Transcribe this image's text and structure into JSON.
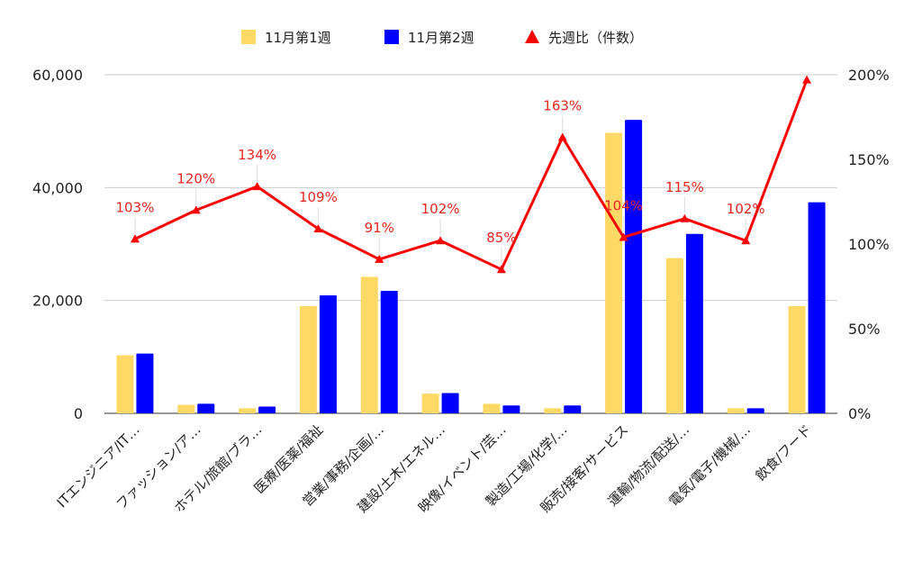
{
  "chart_data": {
    "type": "bar",
    "categories": [
      "ITエンジニア/IT…",
      "ファッション/ア…",
      "ホテル/旅館/ブラ…",
      "医療/医薬/福祉",
      "営業/事務/企画/…",
      "建設/土木/エネル…",
      "映像/イベント/芸…",
      "製造/工場/化学/…",
      "販売/接客/サービス",
      "運輸/物流/配送/…",
      "電気/電子/機械/…",
      "飲食/フード"
    ],
    "series": [
      {
        "name": "11月第1週",
        "type": "bar",
        "axis": "left",
        "color": "#FFD966",
        "values": [
          10300,
          1500,
          900,
          19000,
          24200,
          3500,
          1700,
          900,
          49700,
          27500,
          900,
          19000
        ]
      },
      {
        "name": "11月第2週",
        "type": "bar",
        "axis": "left",
        "color": "#0000FF",
        "values": [
          10600,
          1700,
          1200,
          20900,
          21700,
          3600,
          1400,
          1400,
          52000,
          31800,
          900,
          37400
        ]
      },
      {
        "name": "先週比（件数）",
        "type": "line",
        "axis": "right",
        "color": "#FF0000",
        "values": [
          103,
          120,
          134,
          109,
          91,
          102,
          85,
          163,
          104,
          115,
          102,
          197
        ],
        "labels": [
          "103%",
          "120%",
          "134%",
          "109%",
          "91%",
          "102%",
          "85%",
          "163%",
          "104%",
          "115%",
          "102%",
          ""
        ]
      }
    ],
    "y_left": {
      "min": 0,
      "max": 60000,
      "ticks": [
        "0",
        "20,000",
        "40,000",
        "60,000"
      ],
      "tick_values": [
        0,
        20000,
        40000,
        60000
      ]
    },
    "y_right": {
      "min": 0,
      "max": 200,
      "ticks": [
        "0%",
        "50%",
        "100%",
        "150%",
        "200%"
      ],
      "tick_values": [
        0,
        50,
        100,
        150,
        200
      ]
    },
    "grid": true,
    "legend_position": "top"
  }
}
